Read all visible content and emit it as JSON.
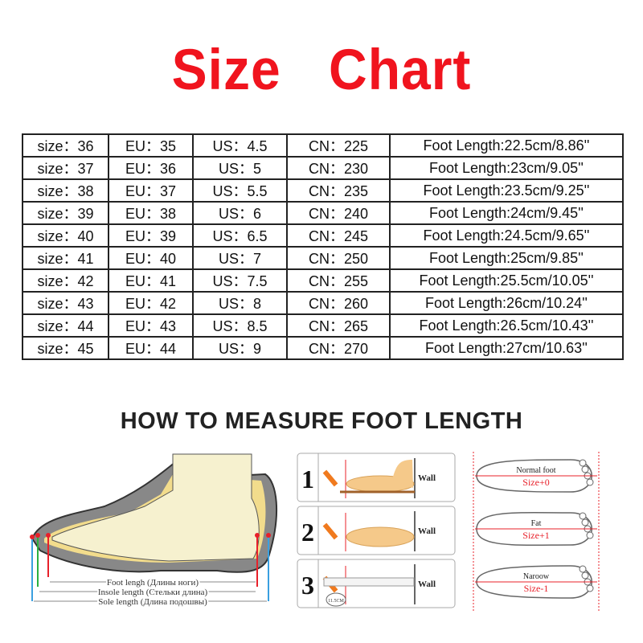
{
  "title": "Size  Chart",
  "table": {
    "rows": [
      [
        "size：36",
        "EU：35",
        "US：4.5",
        "CN：225",
        "Foot Length:22.5cm/8.86''"
      ],
      [
        "size：37",
        "EU：36",
        "US：5",
        "CN：230",
        "Foot Length:23cm/9.05''"
      ],
      [
        "size：38",
        "EU：37",
        "US：5.5",
        "CN：235",
        "Foot Length:23.5cm/9.25''"
      ],
      [
        "size：39",
        "EU：38",
        "US：6",
        "CN：240",
        "Foot Length:24cm/9.45''"
      ],
      [
        "size：40",
        "EU：39",
        "US：6.5",
        "CN：245",
        "Foot Length:24.5cm/9.65''"
      ],
      [
        "size：41",
        "EU：40",
        "US：7",
        "CN：250",
        "Foot Length:25cm/9.85''"
      ],
      [
        "size：42",
        "EU：41",
        "US：7.5",
        "CN：255",
        "Foot Length:25.5cm/10.05''"
      ],
      [
        "size：43",
        "EU：42",
        "US：8",
        "CN：260",
        "Foot Length:26cm/10.24''"
      ],
      [
        "size：44",
        "EU：43",
        "US：8.5",
        "CN：265",
        "Foot Length:26.5cm/10.43''"
      ],
      [
        "size：45",
        "EU：44",
        "US：9",
        "CN：270",
        "Foot Length:27cm/10.63''"
      ]
    ]
  },
  "measure": {
    "heading": "HOW TO MEASURE FOOT LENGTH",
    "shoe_labels": {
      "foot": "Foot lengh (Длины ноги)",
      "insole": "Insole length (Стельки длина)",
      "sole": "Sole length (Длина подошвы)"
    },
    "steps": [
      {
        "number": "1",
        "wall": "Wall"
      },
      {
        "number": "2",
        "wall": "Wall"
      },
      {
        "number": "3",
        "wall": "Wall",
        "ruler_reading": "11.5CM"
      }
    ],
    "foot_types": [
      {
        "name": "Normal foot",
        "size": "Size+0"
      },
      {
        "name": "Fat",
        "size": "Size+1"
      },
      {
        "name": "Naroow",
        "size": "Size-1"
      }
    ]
  },
  "colors": {
    "title": "#f0141e",
    "accent_red": "#e8202a"
  }
}
